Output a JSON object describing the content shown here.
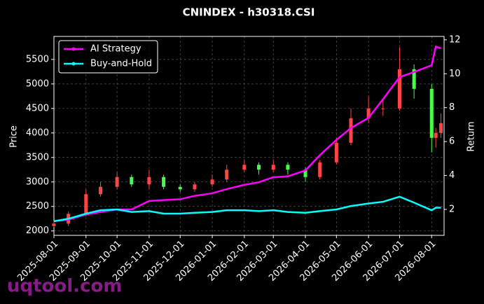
{
  "chart_data": {
    "type": "candlestick",
    "title": "CNINDEX - h30318.CSI",
    "ylabel": "Price",
    "y2label": "Return",
    "watermark": "uqtool.com",
    "x": [
      "2025-08-01",
      "2025-08-15",
      "2025-09-01",
      "2025-09-15",
      "2025-10-01",
      "2025-10-15",
      "2025-11-01",
      "2025-11-15",
      "2025-12-01",
      "2025-12-15",
      "2026-01-01",
      "2026-01-15",
      "2026-02-01",
      "2026-02-15",
      "2026-03-01",
      "2026-03-15",
      "2026-04-01",
      "2026-04-15",
      "2026-05-01",
      "2026-05-15",
      "2026-06-01",
      "2026-06-15",
      "2026-07-01",
      "2026-07-15",
      "2026-08-01",
      "2026-08-05",
      "2026-08-10"
    ],
    "candles": {
      "up_color": "#ff4444",
      "down_color": "#44ff44",
      "open": [
        2100,
        2150,
        2350,
        2750,
        2900,
        3100,
        2950,
        3100,
        2900,
        2850,
        2950,
        3050,
        3250,
        3350,
        3250,
        3350,
        3250,
        3100,
        3400,
        3800,
        4300,
        4500,
        4500,
        5300,
        4900,
        3900,
        4000
      ],
      "high": [
        2200,
        2400,
        2850,
        3000,
        3200,
        3150,
        3250,
        3150,
        2950,
        3000,
        3150,
        3350,
        3450,
        3400,
        3450,
        3400,
        3300,
        3450,
        3900,
        4500,
        4750,
        4700,
        5750,
        5400,
        5000,
        4100,
        4400
      ],
      "low": [
        2080,
        2100,
        2300,
        2700,
        2850,
        2900,
        2850,
        2850,
        2800,
        2800,
        2900,
        3000,
        3200,
        3150,
        3200,
        3150,
        3000,
        3050,
        3350,
        3750,
        4200,
        4350,
        4450,
        4700,
        3600,
        3700,
        3900
      ],
      "close": [
        2150,
        2350,
        2750,
        2900,
        3100,
        2950,
        3100,
        2900,
        2850,
        2950,
        3050,
        3250,
        3350,
        3250,
        3350,
        3250,
        3100,
        3400,
        3800,
        4300,
        4500,
        4500,
        5300,
        4900,
        3900,
        4000,
        4200
      ]
    },
    "series": [
      {
        "name": "AI Strategy",
        "color": "#ff00ff",
        "axis": "y2",
        "values": [
          1.3,
          1.4,
          1.7,
          1.85,
          2.0,
          2.0,
          2.5,
          2.55,
          2.6,
          2.8,
          2.95,
          3.2,
          3.45,
          3.6,
          3.9,
          3.95,
          4.3,
          5.2,
          6.1,
          6.8,
          7.4,
          8.5,
          9.8,
          10.1,
          10.5,
          11.6,
          11.5
        ]
      },
      {
        "name": "Buy-and-Hold",
        "color": "#00ffff",
        "axis": "y2",
        "values": [
          1.3,
          1.45,
          1.75,
          1.95,
          2.0,
          1.85,
          1.9,
          1.75,
          1.75,
          1.8,
          1.85,
          1.95,
          1.95,
          1.9,
          1.95,
          1.85,
          1.8,
          1.9,
          2.0,
          2.2,
          2.35,
          2.45,
          2.75,
          2.4,
          1.95,
          2.1,
          2.1
        ]
      }
    ],
    "xlim": [
      "2025-08-01",
      "2026-08-13"
    ],
    "xticks": [
      "2025-08-01",
      "2025-09-01",
      "2025-10-01",
      "2025-11-01",
      "2025-12-01",
      "2026-01-01",
      "2026-02-01",
      "2026-03-01",
      "2026-04-01",
      "2026-05-01",
      "2026-06-01",
      "2026-07-01",
      "2026-08-01"
    ],
    "ylim": [
      1910,
      5970
    ],
    "yticks": [
      2000,
      2500,
      3000,
      3500,
      4000,
      4500,
      5000,
      5500
    ],
    "y2lim": [
      0.47,
      12.2
    ],
    "y2ticks": [
      2,
      4,
      6,
      8,
      10,
      12
    ],
    "grid": true,
    "legend": "upper-left"
  }
}
